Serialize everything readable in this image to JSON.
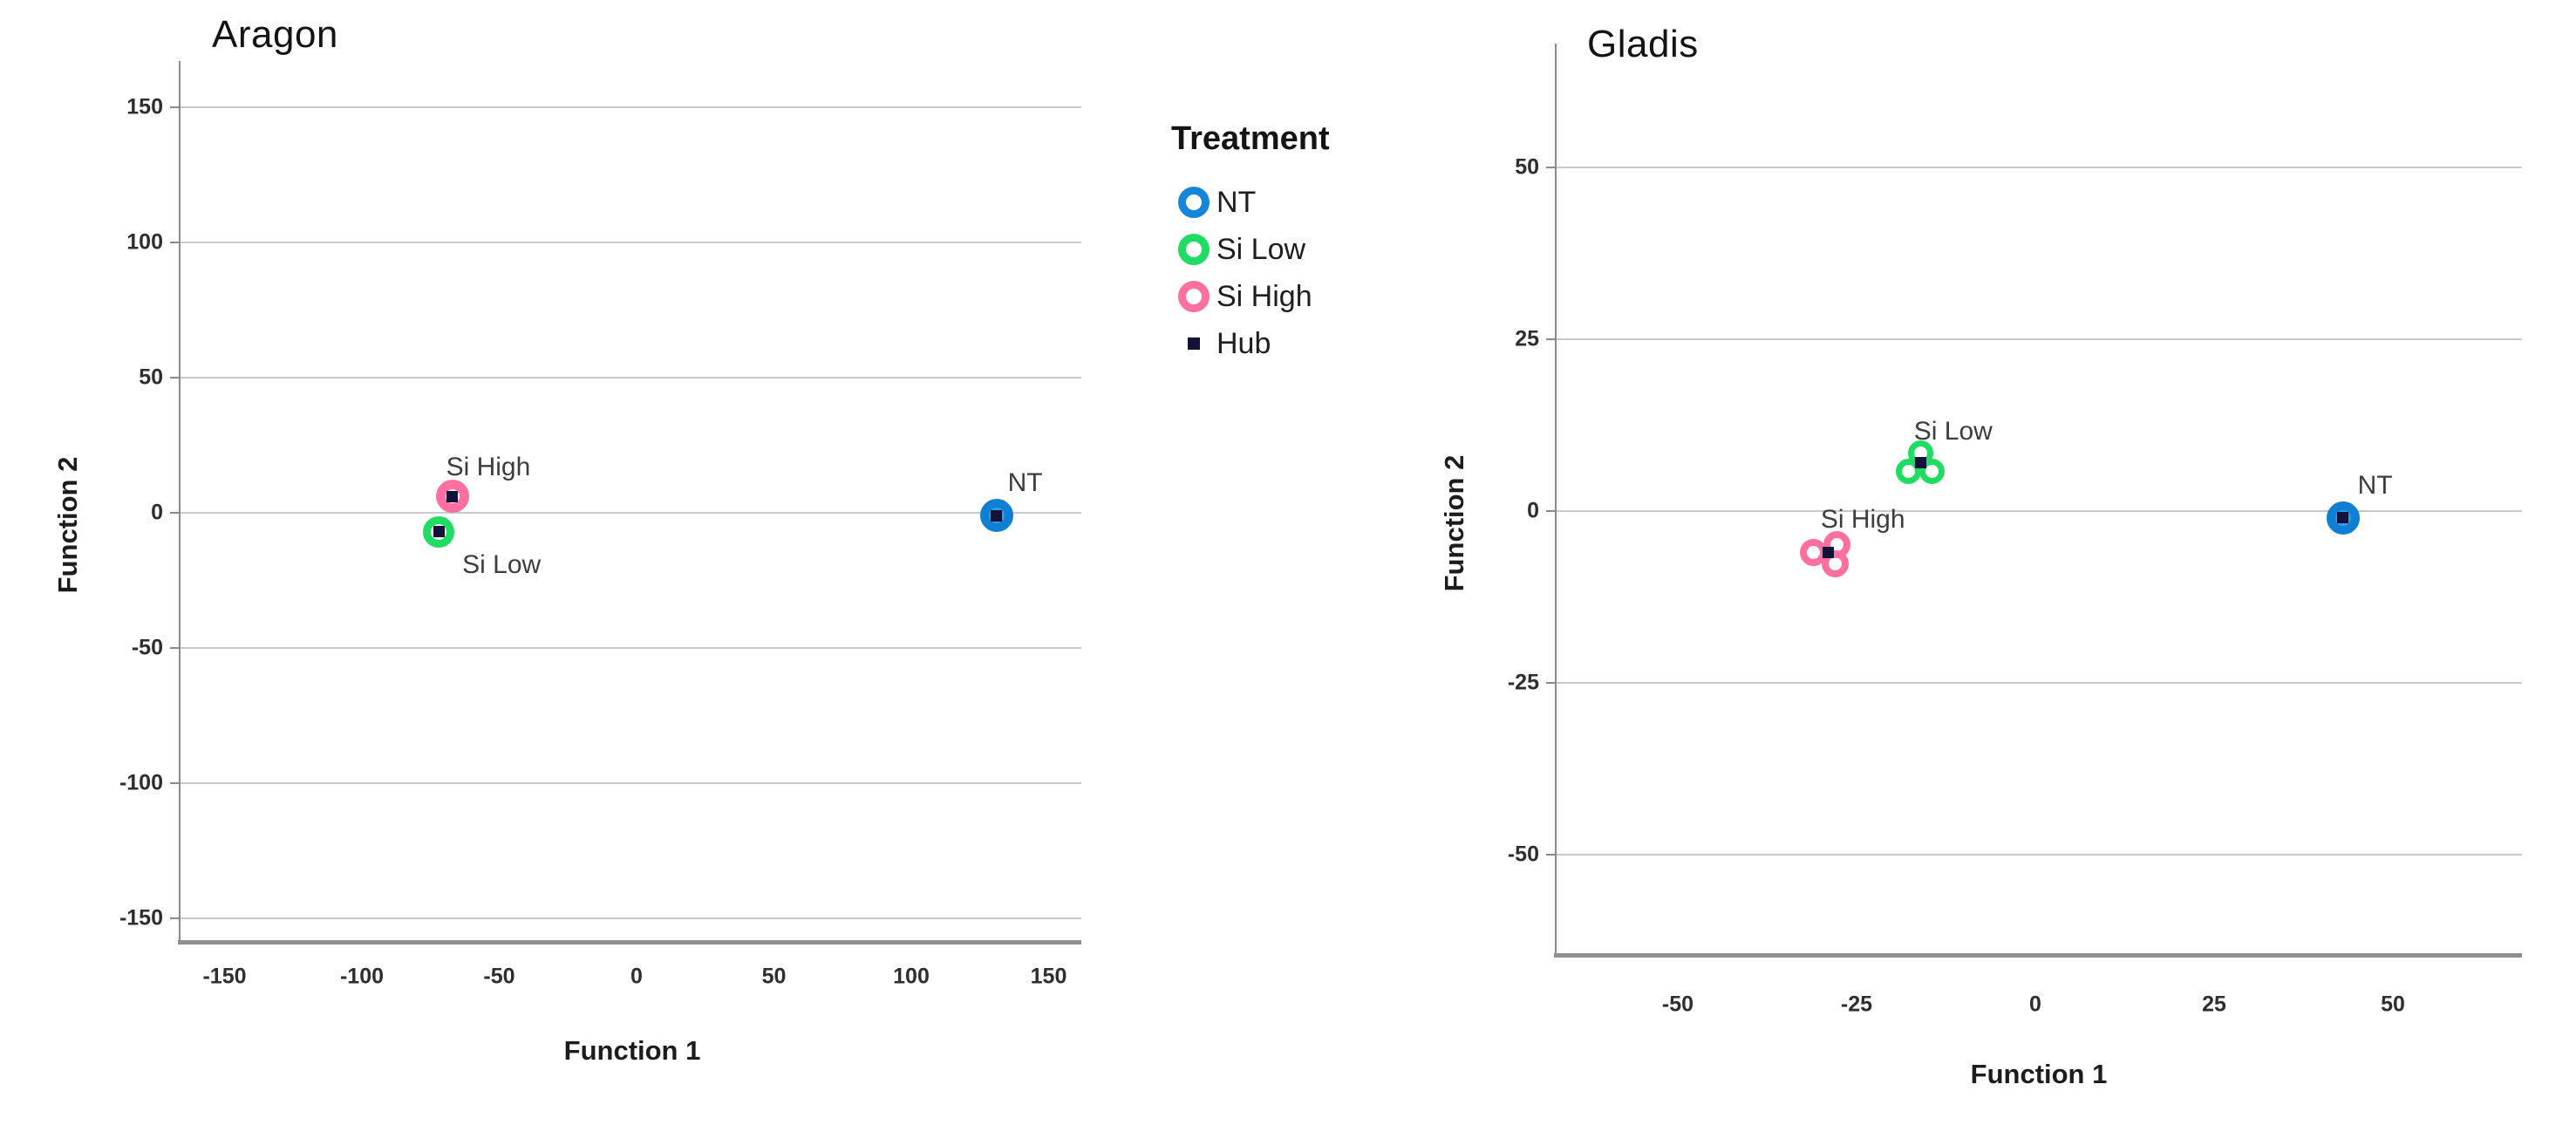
{
  "figure": {
    "background": "#ffffff"
  },
  "legend": {
    "title": "Treatment",
    "position": "middle-top",
    "items": [
      {
        "label": "NT",
        "marker": "ring",
        "color": "#1487DB"
      },
      {
        "label": "Si Low",
        "marker": "ring",
        "color": "#1FDD62"
      },
      {
        "label": "Si High",
        "marker": "ring",
        "color": "#FF6F9F"
      },
      {
        "label": "Hub",
        "marker": "square",
        "color": "#12123A"
      }
    ]
  },
  "colors": {
    "nt_blue": "#1487DB",
    "nt_fill": "#2F9FE3",
    "si_low_green": "#1FDD62",
    "si_high_pink": "#FF6F9F",
    "hub_navy": "#12123A",
    "gridline": "#C9C9C9",
    "axis": "#8A8A8A"
  },
  "chart_data": [
    {
      "type": "scatter",
      "title": "Aragon",
      "xlabel": "Function 1",
      "ylabel": "Function 2",
      "xticks": [
        -150,
        -100,
        -50,
        0,
        50,
        100,
        150
      ],
      "yticks": [
        150,
        100,
        50,
        0,
        -50,
        -100,
        -150
      ],
      "xlim": [
        -167,
        162
      ],
      "ylim": [
        -159,
        167
      ],
      "grid": "horizontal-only",
      "legend_groups": [
        "NT",
        "Si Low",
        "Si High"
      ],
      "points": [
        {
          "treatment": "Si High",
          "label": "Si High",
          "x": -67,
          "y": 6,
          "hub": true
        },
        {
          "treatment": "Si Low",
          "label": "Si Low",
          "x": -72,
          "y": -7,
          "hub": true
        },
        {
          "treatment": "NT",
          "label": "NT",
          "x": 131,
          "y": -1,
          "hub": true
        }
      ]
    },
    {
      "type": "scatter",
      "title": "Gladis",
      "xlabel": "Function 1",
      "ylabel": "Function 2",
      "xticks": [
        -50,
        -25,
        0,
        25,
        50
      ],
      "yticks": [
        50,
        25,
        0,
        -25,
        -50
      ],
      "xlim": [
        -67,
        68
      ],
      "ylim": [
        -65,
        68
      ],
      "grid": "horizontal-only",
      "legend_groups": [
        "NT",
        "Si Low",
        "Si High"
      ],
      "points": [
        {
          "treatment": "Si Low",
          "label": "Si Low",
          "x": -16,
          "y": 7,
          "hub": true,
          "overlapping_cases": 3
        },
        {
          "treatment": "Si High",
          "label": "Si High",
          "x": -29,
          "y": -6,
          "hub": true,
          "overlapping_cases": 3
        },
        {
          "treatment": "NT",
          "label": "NT",
          "x": 43,
          "y": -1,
          "hub": true
        }
      ]
    }
  ]
}
